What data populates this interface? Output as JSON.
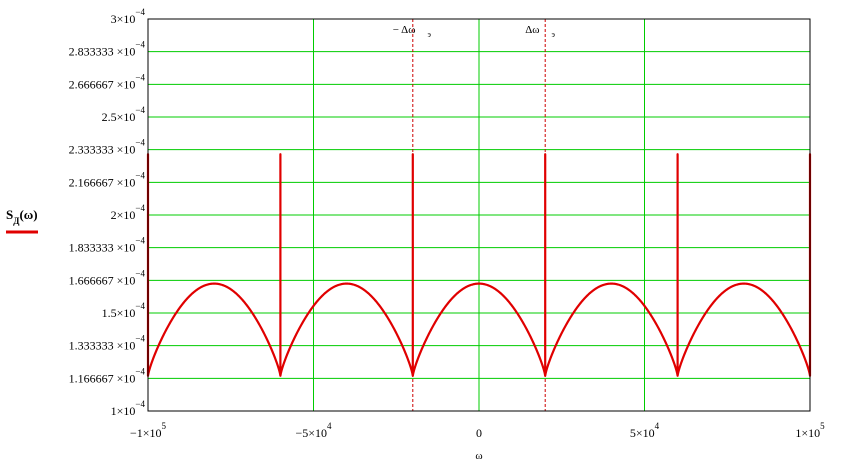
{
  "chart_data": {
    "type": "line",
    "title": "",
    "xlabel": "ω",
    "ylabel": "",
    "xlim": [
      -100000,
      100000
    ],
    "ylim": [
      0.0001,
      0.0003
    ],
    "grid": true,
    "x_ticks": [
      -100000,
      -50000,
      0,
      50000,
      100000
    ],
    "x_tick_labels": [
      {
        "mant": "−1×10",
        "exp": "5"
      },
      {
        "mant": "−5×10",
        "exp": "4"
      },
      {
        "mant": "0",
        "exp": ""
      },
      {
        "mant": "5×10",
        "exp": "4"
      },
      {
        "mant": "1×10",
        "exp": "5"
      }
    ],
    "y_ticks": [
      0.0001,
      0.000116667,
      0.000133333,
      0.00015,
      0.000166667,
      0.000183333,
      0.0002,
      0.000216667,
      0.000233333,
      0.00025,
      0.000266667,
      0.000283333,
      0.0003
    ],
    "y_tick_labels": [
      {
        "mant": "1×10",
        "exp": "−4"
      },
      {
        "mant": "1.166667 ×10",
        "exp": "−4"
      },
      {
        "mant": "1.333333 ×10",
        "exp": "−4"
      },
      {
        "mant": "1.5×10",
        "exp": "−4"
      },
      {
        "mant": "1.666667 ×10",
        "exp": "−4"
      },
      {
        "mant": "1.833333 ×10",
        "exp": "−4"
      },
      {
        "mant": "2×10",
        "exp": "−4"
      },
      {
        "mant": "2.166667 ×10",
        "exp": "−4"
      },
      {
        "mant": "2.333333 ×10",
        "exp": "−4"
      },
      {
        "mant": "2.5×10",
        "exp": "−4"
      },
      {
        "mant": "2.666667 ×10",
        "exp": "−4"
      },
      {
        "mant": "2.833333 ×10",
        "exp": "−4"
      },
      {
        "mant": "3×10",
        "exp": "−4"
      }
    ],
    "series": [
      {
        "legend_main": "S",
        "legend_sub": "Д",
        "legend_arg": "(ω)",
        "color": "#e00000",
        "shape": "periodic arches with narrow spikes at each minimum",
        "period": 40000,
        "minima_x": [
          -100000,
          -60000,
          -20000,
          20000,
          60000,
          100000
        ],
        "peaks_x": [
          -80000,
          -40000,
          0,
          40000,
          80000
        ],
        "baseline_min": 0.000118,
        "arch_peak": 0.000165,
        "spike_peak": 0.000231
      }
    ],
    "markers": [
      {
        "x": -20000,
        "label": "− Δω",
        "sub": "э",
        "color": "#cc0000",
        "style": "dashed"
      },
      {
        "x": 20000,
        "label": "Δω",
        "sub": "э",
        "color": "#cc0000",
        "style": "dashed"
      }
    ],
    "legend_position": "left"
  }
}
